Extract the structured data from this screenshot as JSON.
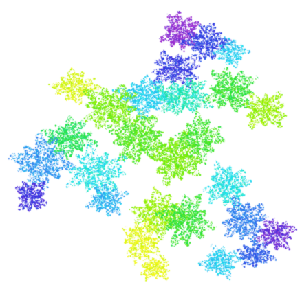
{
  "image": {
    "subject": "fractal-point-cloud",
    "background": "#ffffff",
    "palette": {
      "violet": "#a030d0",
      "blue": "#3030e0",
      "sky": "#3090f0",
      "cyan": "#20e8f0",
      "green": "#20e040",
      "lime": "#90f000",
      "yellow": "#f8f820"
    }
  }
}
